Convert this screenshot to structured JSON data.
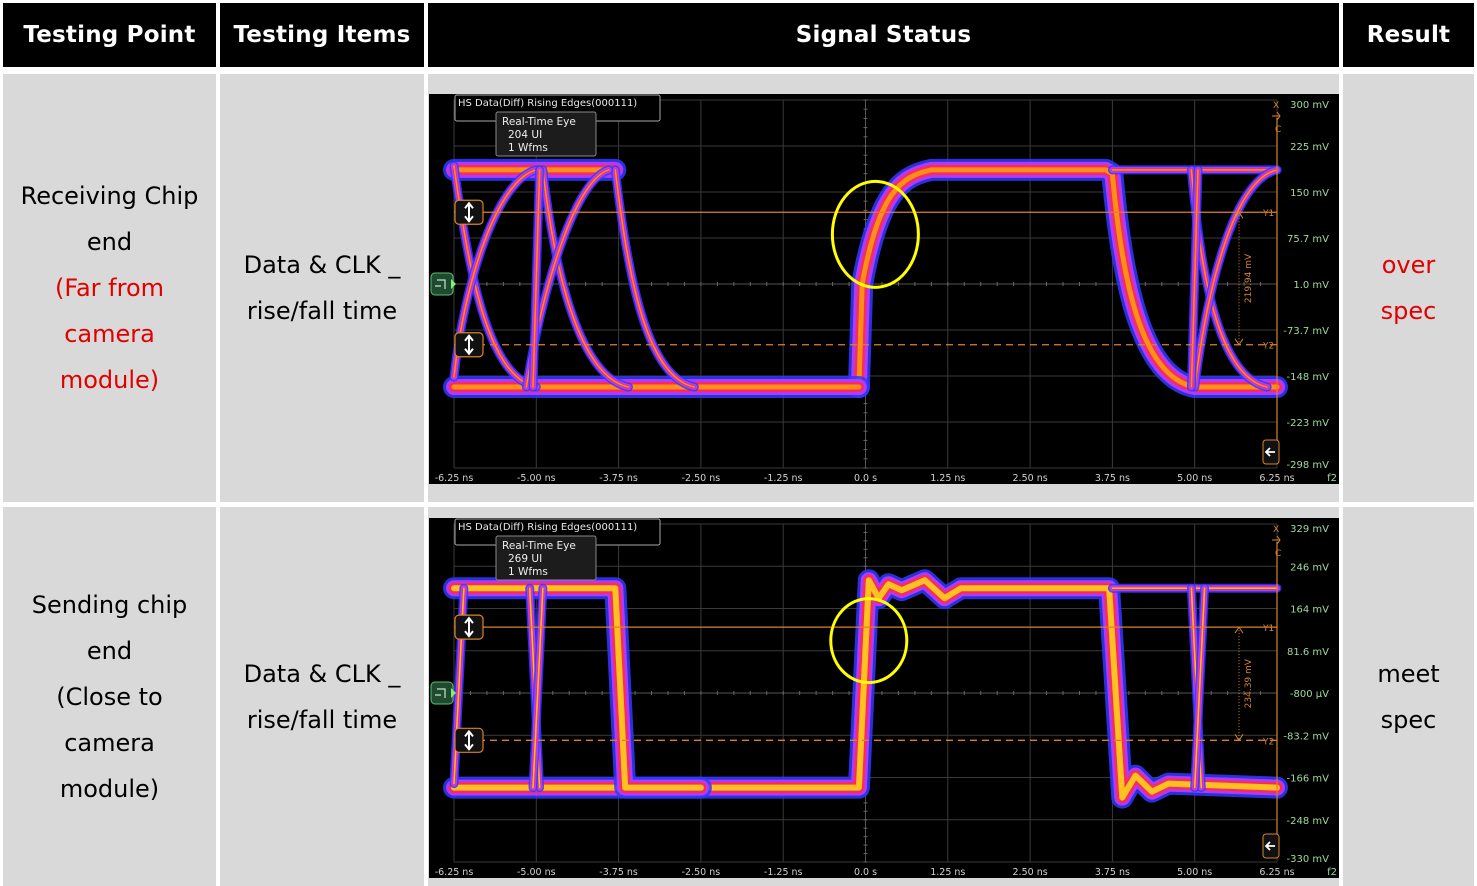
{
  "table": {
    "headers": [
      "Testing Point",
      "Testing Items",
      "Signal Status",
      "Result"
    ],
    "rows": [
      {
        "testing_point": {
          "line1": "Receiving Chip",
          "line2": "end",
          "note_line1": "(Far from",
          "note_line2": "camera",
          "note_line3": "module)",
          "note_color": "#e00000"
        },
        "testing_items": {
          "line1": "Data & CLK _",
          "line2": "rise/fall time"
        },
        "result": {
          "line1": "over",
          "line2": "spec",
          "color": "#e00000"
        }
      },
      {
        "testing_point": {
          "line1": "Sending chip",
          "line2": "end",
          "note_line1": "(Close to",
          "note_line2": "camera",
          "note_line3": "module)",
          "note_color": "#000000"
        },
        "testing_items": {
          "line1": "Data & CLK _",
          "line2": "rise/fall time"
        },
        "result": {
          "line1": "meet",
          "line2": "spec",
          "color": "#000000"
        }
      }
    ]
  },
  "scopes": [
    {
      "title": "HS Data(Diff) Rising Edges(000111)",
      "badge_line1": "Real-Time Eye",
      "badge_line2": "204 UI",
      "badge_line3": "1 Wfms",
      "y_ticks": [
        "300 mV",
        "225 mV",
        "150 mV",
        "75.7 mV",
        "1.0 mV",
        "-73.7 mV",
        "-148 mV",
        "-223 mV",
        "-298 mV"
      ],
      "x_ticks": [
        "-6.25 ns",
        "-5.00 ns",
        "-3.75 ns",
        "-2.50 ns",
        "-1.25 ns",
        "0.0 s",
        "1.25 ns",
        "2.50 ns",
        "3.75 ns",
        "5.00 ns",
        "6.25 ns"
      ],
      "cursor_delta": "219.94 mV",
      "cursor_y1": "Y1",
      "cursor_y2": "Y2",
      "x_marker": "X",
      "c_marker": "C",
      "corner_label": "f2",
      "highlight": "rising edge circled (slow rise)"
    },
    {
      "title": "HS Data(Diff) Rising Edges(000111)",
      "badge_line1": "Real-Time Eye",
      "badge_line2": "269 UI",
      "badge_line3": "1 Wfms",
      "y_ticks": [
        "329 mV",
        "246 mV",
        "164 mV",
        "81.6 mV",
        "-800 µV",
        "-83.2 mV",
        "-166 mV",
        "-248 mV",
        "-330 mV"
      ],
      "x_ticks": [
        "-6.25 ns",
        "-5.00 ns",
        "-3.75 ns",
        "-2.50 ns",
        "-1.25 ns",
        "0.0 s",
        "1.25 ns",
        "2.50 ns",
        "3.75 ns",
        "5.00 ns",
        "6.25 ns"
      ],
      "cursor_delta": "234.39 mV",
      "cursor_y1": "Y1",
      "cursor_y2": "Y2",
      "x_marker": "X",
      "c_marker": "C",
      "corner_label": "f2",
      "highlight": "rising edge circled (fast rise)"
    }
  ],
  "colors": {
    "header_bg": "#000000",
    "cell_bg": "#d9d9d9",
    "fail_text": "#e00000",
    "cursor": "#d9822b",
    "highlight_circle": "#ffff00",
    "axis_label": "#9fd89f"
  }
}
